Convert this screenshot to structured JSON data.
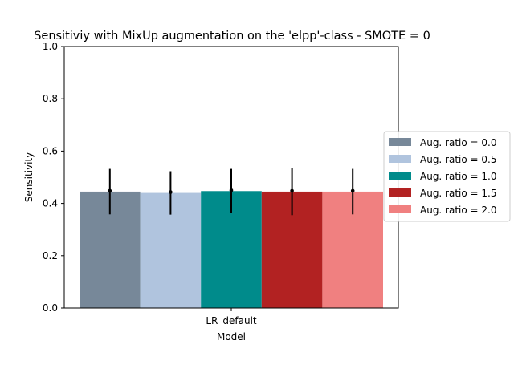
{
  "chart_data": {
    "type": "bar",
    "title": "Sensitiviy with MixUp augmentation on the 'elpp'-class - SMOTE = 0",
    "xlabel": "Model",
    "ylabel": "Sensitivity",
    "categories": [
      "LR_default"
    ],
    "ylim": [
      0,
      1.0
    ],
    "yticks": [
      "0.0",
      "0.2",
      "0.4",
      "0.6",
      "0.8",
      "1.0"
    ],
    "legend_position": "right",
    "grid": false,
    "series": [
      {
        "name": "Aug. ratio = 0.0",
        "color": "#778899",
        "values": [
          0.445
        ],
        "error": [
          0.087
        ]
      },
      {
        "name": "Aug. ratio = 0.5",
        "color": "#b0c4de",
        "values": [
          0.44
        ],
        "error": [
          0.083
        ]
      },
      {
        "name": "Aug. ratio = 1.0",
        "color": "#008b8b",
        "values": [
          0.447
        ],
        "error": [
          0.085
        ]
      },
      {
        "name": "Aug. ratio = 1.5",
        "color": "#b22222",
        "values": [
          0.445
        ],
        "error": [
          0.09
        ]
      },
      {
        "name": "Aug. ratio = 2.0",
        "color": "#f08080",
        "values": [
          0.445
        ],
        "error": [
          0.087
        ]
      }
    ]
  }
}
